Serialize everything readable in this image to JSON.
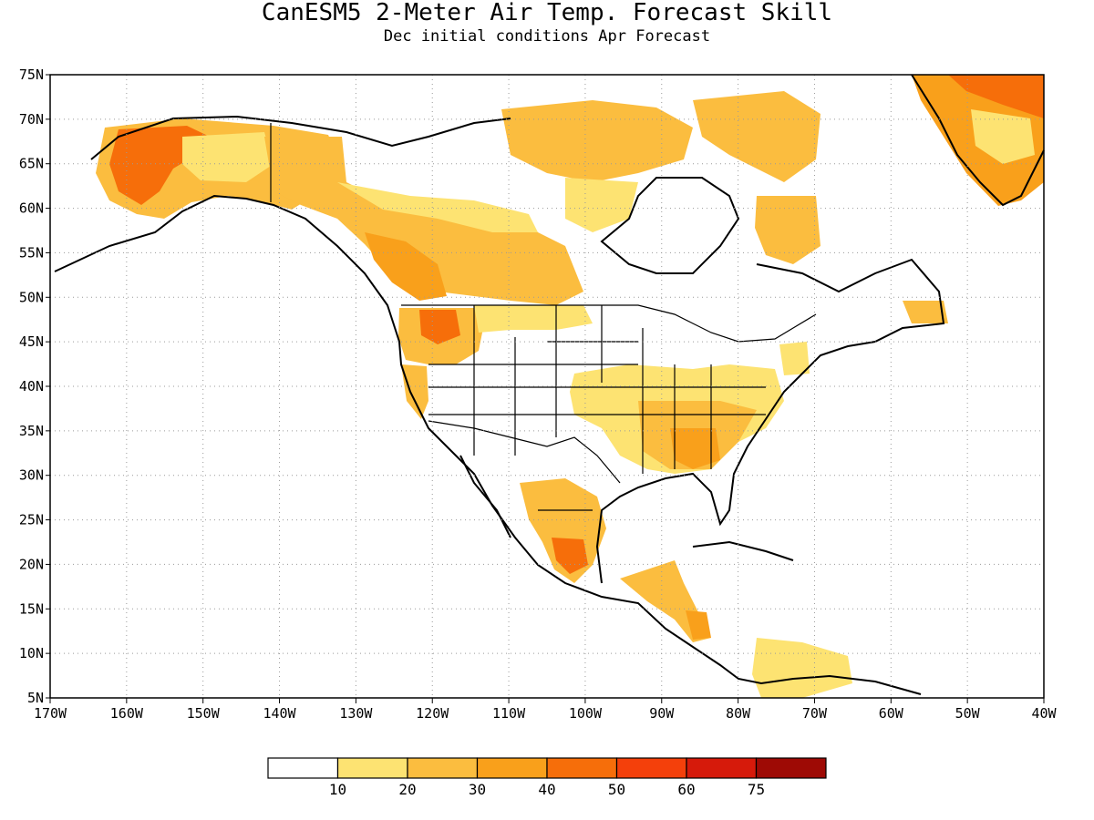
{
  "title": "CanESM5 2-Meter Air Temp. Forecast Skill",
  "subtitle": "Dec initial conditions  Apr Forecast",
  "lon_labels": [
    "170W",
    "160W",
    "150W",
    "140W",
    "130W",
    "120W",
    "110W",
    "100W",
    "90W",
    "80W",
    "70W",
    "60W",
    "50W",
    "40W"
  ],
  "lat_labels": [
    "75N",
    "70N",
    "65N",
    "60N",
    "55N",
    "50N",
    "45N",
    "40N",
    "35N",
    "30N",
    "25N",
    "20N",
    "15N",
    "10N",
    "5N"
  ],
  "legend": {
    "tick_labels": [
      "10",
      "20",
      "30",
      "40",
      "50",
      "60",
      "75"
    ],
    "colors": [
      "#ffffff",
      "#fde372",
      "#fbbd3f",
      "#f9a01b",
      "#f66e0a",
      "#f4400b",
      "#d61a0b",
      "#9e0a05"
    ]
  },
  "palette": {
    "skill_10_20": "#fde372",
    "skill_20_30": "#fbbd3f",
    "skill_30_40": "#f9a01b",
    "skill_40_50": "#f66e0a",
    "skill_50_60": "#f4400b"
  }
}
